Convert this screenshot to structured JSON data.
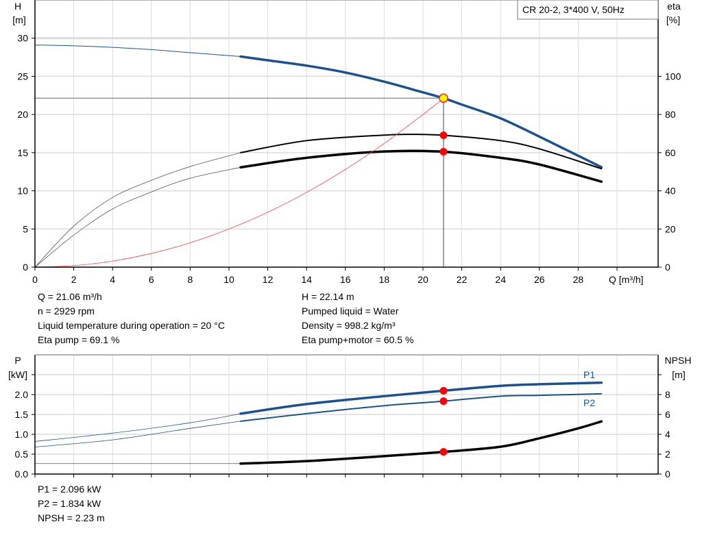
{
  "chart_data": [
    {
      "type": "line",
      "title": "CR 20-2, 3*400 V, 50Hz",
      "xlabel": "Q [m³/h]",
      "ylabel": [
        "H",
        "[m]"
      ],
      "y2label": [
        "eta",
        "[%]"
      ],
      "xlim": [
        0,
        32
      ],
      "ylim": [
        0,
        35
      ],
      "y2lim": [
        0,
        140
      ],
      "xticks": [
        0,
        2,
        4,
        6,
        8,
        10,
        12,
        14,
        16,
        18,
        20,
        22,
        24,
        26,
        28
      ],
      "yticks": [
        0,
        5,
        10,
        15,
        20,
        25,
        30
      ],
      "y2ticks": [
        0,
        20,
        40,
        60,
        80,
        100
      ],
      "grid": true,
      "series": [
        {
          "key": "H",
          "axis": "left",
          "color": "#1a5190",
          "x": [
            0,
            2,
            4,
            6,
            8,
            10.6,
            12,
            14,
            16,
            18,
            20,
            21.06,
            22,
            24,
            26,
            28,
            29.2
          ],
          "y": [
            29.1,
            29.0,
            28.8,
            28.5,
            28.1,
            27.6,
            27.1,
            26.4,
            25.5,
            24.3,
            22.9,
            22.14,
            21.3,
            19.5,
            17.1,
            14.6,
            13.1
          ]
        },
        {
          "key": "eta_pump",
          "axis": "right",
          "color": "#000000",
          "x": [
            0,
            2,
            4,
            6,
            8,
            10.6,
            14,
            18,
            19.5,
            21.06,
            24,
            26,
            29.2
          ],
          "y": [
            0,
            21.5,
            36.5,
            45.5,
            52.7,
            60,
            66.3,
            69.2,
            69.6,
            69.1,
            66.3,
            62,
            51.6
          ]
        },
        {
          "key": "eta_pump_motor",
          "axis": "right",
          "color": "#000000",
          "x": [
            0,
            2,
            4,
            6,
            8,
            10.6,
            14,
            18,
            21.06,
            24,
            26,
            29.2
          ],
          "y": [
            0,
            16.8,
            30.5,
            39.4,
            46.6,
            52.3,
            57.3,
            60.6,
            60.5,
            57.3,
            53.8,
            44.8
          ]
        },
        {
          "key": "system",
          "axis": "left",
          "color": "#ff4040",
          "x": [
            0,
            2,
            4,
            6,
            8,
            10,
            12,
            14,
            16,
            18,
            20,
            21.06
          ],
          "y": [
            0,
            0.2,
            0.8,
            1.8,
            3.2,
            5.0,
            7.2,
            9.8,
            12.8,
            16.2,
            20.0,
            22.14
          ]
        }
      ],
      "operating_point": {
        "Q": 21.06,
        "H": 22.14,
        "eta_pump": 69.1,
        "eta_pump_motor": 60.5
      },
      "curve_start_bold": 10.6
    },
    {
      "type": "line",
      "ylabel": [
        "P",
        "[kW]"
      ],
      "y2label": [
        "NPSH",
        "[m]"
      ],
      "xlim": [
        0,
        32
      ],
      "ylim": [
        0,
        3
      ],
      "y2lim": [
        0,
        12
      ],
      "xticks": [
        0,
        2,
        4,
        6,
        8,
        10,
        12,
        14,
        16,
        18,
        20,
        22,
        24,
        26,
        28
      ],
      "yticks": [
        "0.0",
        "0.5",
        "1.0",
        "1.5",
        "2.0",
        "2.5"
      ],
      "yticks_labeled": [
        "0.0",
        "0.5",
        "1.0",
        "1.5",
        "2.0"
      ],
      "y2ticks": [
        0,
        2,
        4,
        6,
        8,
        10
      ],
      "y2ticks_labeled": [
        "0",
        "2",
        "4",
        "6",
        "8"
      ],
      "grid": true,
      "series": [
        {
          "name": "P1",
          "axis": "left",
          "color": "#1a5190",
          "x": [
            0,
            4,
            8,
            10.6,
            14,
            18,
            21.06,
            24,
            26,
            29.2
          ],
          "y": [
            0.82,
            1.03,
            1.29,
            1.52,
            1.76,
            1.96,
            2.096,
            2.22,
            2.26,
            2.3
          ]
        },
        {
          "name": "P2",
          "axis": "left",
          "color": "#1a5190",
          "x": [
            0,
            4,
            8,
            10.6,
            14,
            18,
            21.06,
            24,
            26,
            29.2
          ],
          "y": [
            0.68,
            0.86,
            1.15,
            1.33,
            1.52,
            1.72,
            1.834,
            1.96,
            1.98,
            2.02
          ]
        },
        {
          "key": "NPSH",
          "axis": "right",
          "color": "#000000",
          "x": [
            0,
            4,
            8,
            10.6,
            14,
            18,
            21.06,
            24,
            26,
            28,
            29.2
          ],
          "y": [
            1.05,
            1.05,
            1.05,
            1.05,
            1.3,
            1.8,
            2.23,
            2.75,
            3.6,
            4.6,
            5.3
          ]
        }
      ],
      "operating_point": {
        "Q": 21.06,
        "P1": 2.096,
        "P2": 1.834,
        "NPSH": 2.23
      },
      "curve_start_bold": 10.6
    }
  ],
  "info_top_left": [
    "Q = 21.06 m³/h",
    "n = 2929 rpm",
    "Liquid temperature during operation = 20 °C",
    "Eta pump = 69.1 %"
  ],
  "info_top_right": [
    "H = 22.14 m",
    "Pumped liquid = Water",
    "Density = 998.2 kg/m³",
    "Eta pump+motor = 60.5 %"
  ],
  "info_bottom": [
    "P1 = 2.096 kW",
    "P2 = 1.834 kW",
    "NPSH = 2.23 m"
  ]
}
